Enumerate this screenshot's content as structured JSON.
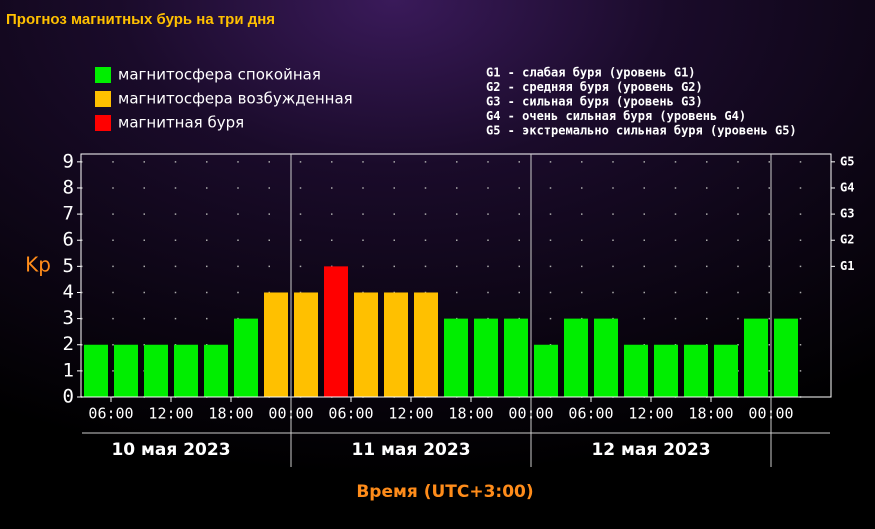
{
  "chart_data": {
    "type": "bar",
    "title": "Прогноз магнитных бурь на три дня",
    "legend": [
      {
        "name": "магнитосфера спокойная",
        "color": "#00ee00"
      },
      {
        "name": "магнитосфера возбужденная",
        "color": "#ffc000"
      },
      {
        "name": "магнитная буря",
        "color": "#ff0000"
      }
    ],
    "scale_legend": [
      "G1 - слабая буря (уровень G1)",
      "G2 - средняя буря (уровень G2)",
      "G3 - сильная буря (уровень G3)",
      "G4 - очень сильная буря (уровень G4)",
      "G5 - экстремально сильная буря (уровень G5)"
    ],
    "y_label": "Kp",
    "x_label": "Время (UTC+3:00)",
    "x": [
      3,
      6,
      9,
      12,
      15,
      18,
      21,
      24,
      27,
      30,
      33,
      36,
      39,
      42,
      45,
      48,
      51,
      54,
      57,
      60,
      63,
      66,
      69,
      72,
      75
    ],
    "values": [
      2,
      2,
      2,
      2,
      2,
      3,
      4,
      4,
      5,
      4,
      4,
      4,
      3,
      3,
      3,
      2,
      3,
      3,
      2,
      2,
      2,
      2,
      3,
      3,
      null
    ],
    "colors": [
      "#00ee00",
      "#00ee00",
      "#00ee00",
      "#00ee00",
      "#00ee00",
      "#00ee00",
      "#ffc000",
      "#ffc000",
      "#ff0000",
      "#ffc000",
      "#ffc000",
      "#ffc000",
      "#00ee00",
      "#00ee00",
      "#00ee00",
      "#00ee00",
      "#00ee00",
      "#00ee00",
      "#00ee00",
      "#00ee00",
      "#00ee00",
      "#00ee00",
      "#00ee00",
      "#00ee00",
      null
    ],
    "xlim": [
      3,
      78
    ],
    "xticks": [
      {
        "value": 6,
        "label": "06:00"
      },
      {
        "value": 12,
        "label": "12:00"
      },
      {
        "value": 18,
        "label": "18:00"
      },
      {
        "value": 24,
        "label": "00:00"
      },
      {
        "value": 30,
        "label": "06:00"
      },
      {
        "value": 36,
        "label": "12:00"
      },
      {
        "value": 42,
        "label": "18:00"
      },
      {
        "value": 48,
        "label": "00:00"
      },
      {
        "value": 54,
        "label": "06:00"
      },
      {
        "value": 60,
        "label": "12:00"
      },
      {
        "value": 66,
        "label": "18:00"
      },
      {
        "value": 72,
        "label": "00:00"
      }
    ],
    "days": [
      "10 мая 2023",
      "11 мая 2023",
      "12 мая 2023"
    ],
    "ylim": [
      0,
      9.3
    ],
    "yticks": [
      0,
      1,
      2,
      3,
      4,
      5,
      6,
      7,
      8,
      9
    ],
    "y2ticks": [
      {
        "value": 5,
        "label": "G1"
      },
      {
        "value": 6,
        "label": "G2"
      },
      {
        "value": 7,
        "label": "G3"
      },
      {
        "value": 8,
        "label": "G4"
      },
      {
        "value": 9,
        "label": "G5"
      }
    ],
    "grid": true
  }
}
